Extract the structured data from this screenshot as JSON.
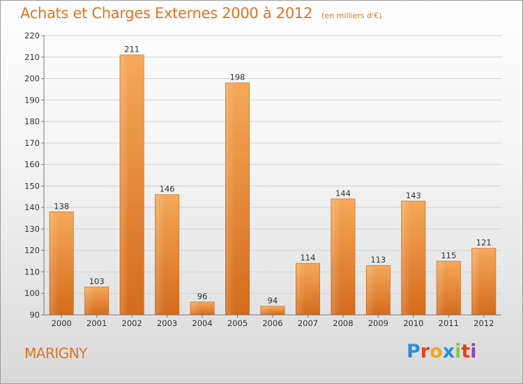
{
  "header": {
    "title": "Achats et Charges Externes 2000 à 2012",
    "unit": "(en milliers d'€)"
  },
  "footer": {
    "place": "MARIGNY",
    "brand_letters": [
      "P",
      "r",
      "o",
      "x",
      "i",
      "t",
      "i"
    ]
  },
  "colors": {
    "accent": "#e07422",
    "bar_light": "#f6a85a",
    "bar_dark": "#d9701f"
  },
  "chart_data": {
    "type": "bar",
    "title": "Achats et Charges Externes 2000 à 2012",
    "subtitle": "(en milliers d'€)",
    "categories": [
      "2000",
      "2001",
      "2002",
      "2003",
      "2004",
      "2005",
      "2006",
      "2007",
      "2008",
      "2009",
      "2010",
      "2011",
      "2012"
    ],
    "values": [
      138,
      103,
      211,
      146,
      96,
      198,
      94,
      114,
      144,
      113,
      143,
      115,
      121
    ],
    "ylim": [
      90,
      220
    ],
    "yticks": [
      90,
      100,
      110,
      120,
      130,
      140,
      150,
      160,
      170,
      180,
      190,
      200,
      210,
      220
    ],
    "grid": true,
    "legend": "none"
  }
}
